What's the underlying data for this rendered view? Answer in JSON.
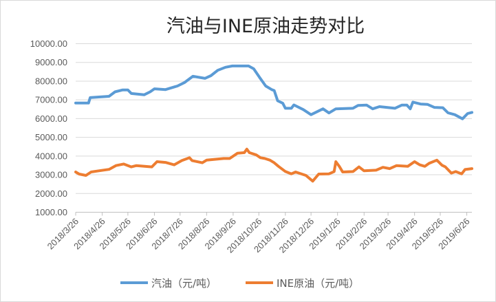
{
  "chart_data": {
    "type": "line",
    "title": "汽油与INE原油走势对比",
    "xlabel": "",
    "ylabel": "",
    "ylim": [
      1000,
      10000
    ],
    "xlim": [
      "2018-03-26",
      "2019-07-02"
    ],
    "grid": true,
    "legend_position": "bottom",
    "y_ticks": [
      "1000.00",
      "2000.00",
      "3000.00",
      "4000.00",
      "5000.00",
      "6000.00",
      "7000.00",
      "8000.00",
      "9000.00",
      "10000.00"
    ],
    "y_tick_values": [
      1000,
      2000,
      3000,
      4000,
      5000,
      6000,
      7000,
      8000,
      9000,
      10000
    ],
    "x_ticks": [
      "2018/3/26",
      "2018/4/26",
      "2018/5/26",
      "2018/6/26",
      "2018/7/26",
      "2018/8/26",
      "2018/9/26",
      "2018/10/26",
      "2018/11/26",
      "2018/12/26",
      "2019/1/26",
      "2019/2/26",
      "2019/3/26",
      "2019/4/26",
      "2019/5/26",
      "2019/6/26"
    ],
    "x_tick_dates": [
      "2018-03-26",
      "2018-04-26",
      "2018-05-26",
      "2018-06-26",
      "2018-07-26",
      "2018-08-26",
      "2018-09-26",
      "2018-10-26",
      "2018-11-26",
      "2018-12-26",
      "2019-01-26",
      "2019-02-26",
      "2019-03-26",
      "2019-04-26",
      "2019-05-26",
      "2019-06-26"
    ],
    "series": [
      {
        "name": "汽油（元/吨）",
        "color": "#5B9BD5",
        "points": [
          [
            "2018-03-26",
            6830
          ],
          [
            "2018-04-10",
            6830
          ],
          [
            "2018-04-12",
            7120
          ],
          [
            "2018-05-04",
            7190
          ],
          [
            "2018-05-11",
            7430
          ],
          [
            "2018-05-20",
            7530
          ],
          [
            "2018-05-26",
            7530
          ],
          [
            "2018-05-30",
            7340
          ],
          [
            "2018-06-14",
            7270
          ],
          [
            "2018-06-21",
            7430
          ],
          [
            "2018-06-26",
            7590
          ],
          [
            "2018-07-09",
            7550
          ],
          [
            "2018-07-23",
            7740
          ],
          [
            "2018-07-31",
            7920
          ],
          [
            "2018-08-10",
            8260
          ],
          [
            "2018-08-24",
            8150
          ],
          [
            "2018-08-31",
            8290
          ],
          [
            "2018-09-08",
            8580
          ],
          [
            "2018-09-17",
            8740
          ],
          [
            "2018-09-25",
            8810
          ],
          [
            "2018-10-14",
            8810
          ],
          [
            "2018-10-20",
            8660
          ],
          [
            "2018-10-27",
            8190
          ],
          [
            "2018-11-03",
            7740
          ],
          [
            "2018-11-10",
            7550
          ],
          [
            "2018-11-13",
            7500
          ],
          [
            "2018-11-17",
            6950
          ],
          [
            "2018-11-23",
            6820
          ],
          [
            "2018-11-26",
            6550
          ],
          [
            "2018-12-03",
            6550
          ],
          [
            "2018-12-06",
            6730
          ],
          [
            "2018-12-17",
            6480
          ],
          [
            "2018-12-26",
            6210
          ],
          [
            "2019-01-09",
            6520
          ],
          [
            "2019-01-16",
            6300
          ],
          [
            "2019-01-24",
            6520
          ],
          [
            "2019-02-13",
            6550
          ],
          [
            "2019-02-19",
            6700
          ],
          [
            "2019-03-01",
            6720
          ],
          [
            "2019-03-08",
            6520
          ],
          [
            "2019-03-16",
            6640
          ],
          [
            "2019-04-03",
            6550
          ],
          [
            "2019-04-11",
            6720
          ],
          [
            "2019-04-17",
            6720
          ],
          [
            "2019-04-21",
            6520
          ],
          [
            "2019-04-24",
            6880
          ],
          [
            "2019-05-03",
            6780
          ],
          [
            "2019-05-11",
            6760
          ],
          [
            "2019-05-19",
            6600
          ],
          [
            "2019-05-29",
            6580
          ],
          [
            "2019-06-04",
            6310
          ],
          [
            "2019-06-12",
            6210
          ],
          [
            "2019-06-21",
            5990
          ],
          [
            "2019-06-27",
            6270
          ],
          [
            "2019-07-02",
            6330
          ]
        ]
      },
      {
        "name": "INE原油（元/吨）",
        "color": "#ED7D31",
        "points": [
          [
            "2018-03-26",
            3150
          ],
          [
            "2018-03-30",
            3040
          ],
          [
            "2018-04-07",
            2965
          ],
          [
            "2018-04-13",
            3150
          ],
          [
            "2018-04-22",
            3210
          ],
          [
            "2018-05-04",
            3290
          ],
          [
            "2018-05-12",
            3490
          ],
          [
            "2018-05-21",
            3575
          ],
          [
            "2018-05-30",
            3420
          ],
          [
            "2018-06-05",
            3490
          ],
          [
            "2018-06-23",
            3420
          ],
          [
            "2018-06-29",
            3700
          ],
          [
            "2018-07-09",
            3660
          ],
          [
            "2018-07-19",
            3530
          ],
          [
            "2018-07-28",
            3760
          ],
          [
            "2018-08-06",
            3910
          ],
          [
            "2018-08-09",
            3760
          ],
          [
            "2018-08-21",
            3640
          ],
          [
            "2018-08-26",
            3780
          ],
          [
            "2018-09-15",
            3870
          ],
          [
            "2018-09-22",
            3870
          ],
          [
            "2018-10-01",
            4150
          ],
          [
            "2018-10-09",
            4180
          ],
          [
            "2018-10-12",
            4370
          ],
          [
            "2018-10-15",
            4180
          ],
          [
            "2018-10-23",
            4060
          ],
          [
            "2018-10-28",
            3910
          ],
          [
            "2018-11-02",
            3870
          ],
          [
            "2018-11-08",
            3780
          ],
          [
            "2018-11-13",
            3640
          ],
          [
            "2018-11-18",
            3450
          ],
          [
            "2018-11-26",
            3175
          ],
          [
            "2018-12-03",
            3050
          ],
          [
            "2018-12-08",
            3150
          ],
          [
            "2018-12-20",
            2965
          ],
          [
            "2018-12-28",
            2660
          ],
          [
            "2019-01-04",
            3040
          ],
          [
            "2019-01-16",
            3050
          ],
          [
            "2019-01-22",
            3170
          ],
          [
            "2019-01-24",
            3700
          ],
          [
            "2019-01-28",
            3450
          ],
          [
            "2019-02-01",
            3150
          ],
          [
            "2019-02-13",
            3170
          ],
          [
            "2019-02-20",
            3420
          ],
          [
            "2019-02-26",
            3210
          ],
          [
            "2019-03-12",
            3245
          ],
          [
            "2019-03-20",
            3400
          ],
          [
            "2019-03-28",
            3330
          ],
          [
            "2019-04-05",
            3490
          ],
          [
            "2019-04-18",
            3450
          ],
          [
            "2019-04-26",
            3700
          ],
          [
            "2019-05-02",
            3530
          ],
          [
            "2019-05-08",
            3450
          ],
          [
            "2019-05-13",
            3610
          ],
          [
            "2019-05-22",
            3780
          ],
          [
            "2019-05-28",
            3510
          ],
          [
            "2019-06-01",
            3420
          ],
          [
            "2019-06-08",
            3090
          ],
          [
            "2019-06-13",
            3170
          ],
          [
            "2019-06-20",
            3050
          ],
          [
            "2019-06-24",
            3280
          ],
          [
            "2019-07-02",
            3330
          ]
        ]
      }
    ]
  }
}
